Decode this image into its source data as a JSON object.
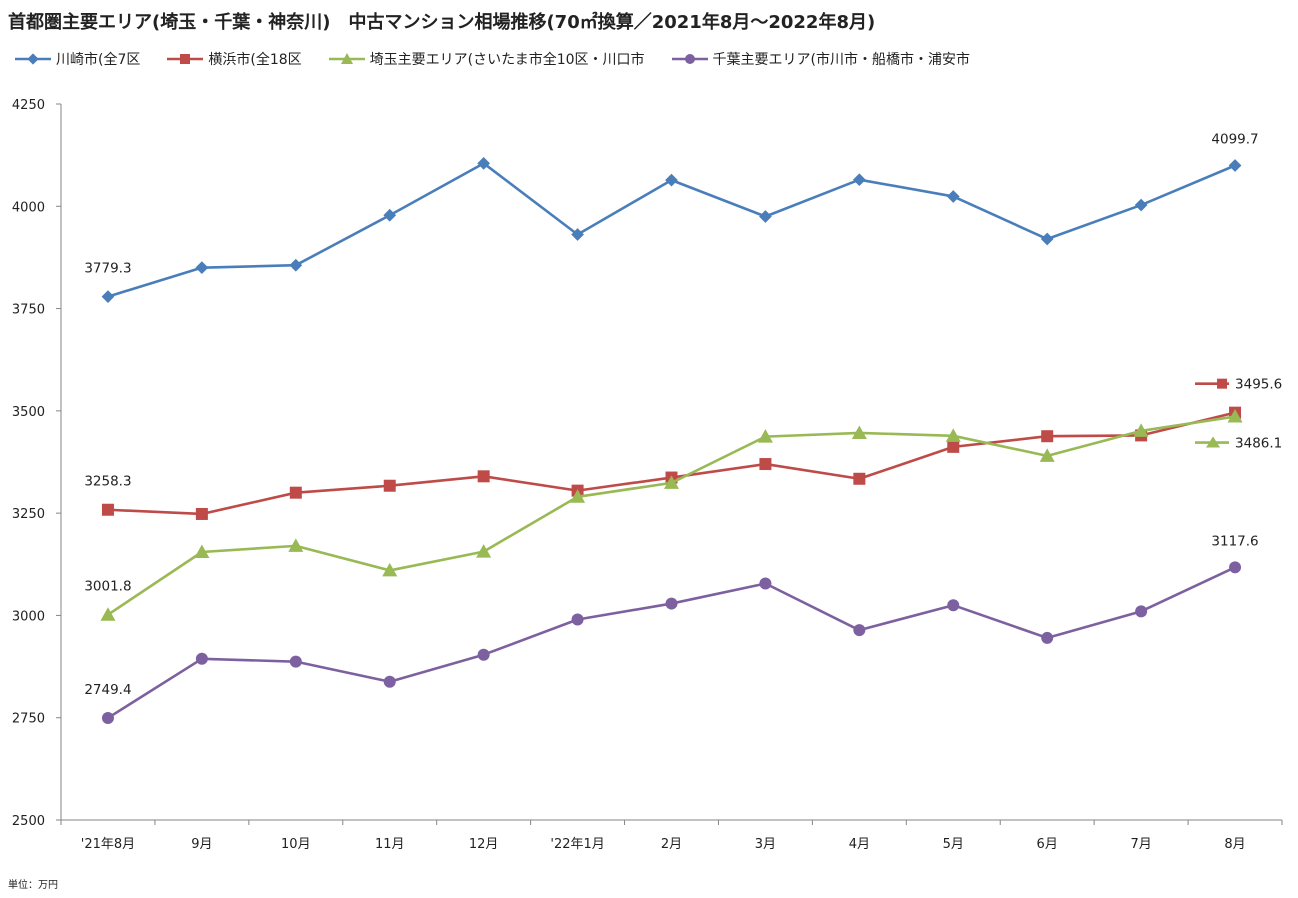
{
  "title": "首都圏主要エリア(埼玉・千葉・神奈川)　中古マンション相場推移(70㎡換算／2021年8月～2022年8月)",
  "unit_note": "単位：万円",
  "chart_data": {
    "type": "line",
    "title": "首都圏主要エリア(埼玉・千葉・神奈川)　中古マンション相場推移(70㎡換算／2021年8月～2022年8月)",
    "xlabel": "",
    "ylabel": "",
    "ylim": [
      2500,
      4250
    ],
    "yticks": [
      2500,
      2750,
      3000,
      3250,
      3500,
      3750,
      4000,
      4250
    ],
    "grid": false,
    "legend_position": "top",
    "categories": [
      "'21年8月",
      "9月",
      "10月",
      "11月",
      "12月",
      "'22年1月",
      "2月",
      "3月",
      "4月",
      "5月",
      "6月",
      "7月",
      "8月"
    ],
    "series": [
      {
        "name": "川崎市(全7区",
        "color": "#4a7ebb",
        "marker": "diamond",
        "values": [
          3779.3,
          3850,
          3856,
          3978,
          4105,
          3931,
          4064,
          3975,
          4065,
          4024,
          3920,
          4003,
          4099.7
        ],
        "labels": [
          {
            "index": 0,
            "text": "3779.3"
          },
          {
            "index": 12,
            "text": "4099.7"
          }
        ]
      },
      {
        "name": "横浜市(全18区",
        "color": "#be4b48",
        "marker": "square",
        "values": [
          3258.3,
          3248,
          3300,
          3317,
          3340,
          3305,
          3337,
          3370,
          3334,
          3412,
          3438,
          3440,
          3495.6
        ],
        "labels": [
          {
            "index": 0,
            "text": "3258.3"
          },
          {
            "index": 12,
            "text": "3495.6"
          }
        ]
      },
      {
        "name": "埼玉主要エリア(さいたま市全10区・川口市",
        "color": "#98b954",
        "marker": "triangle",
        "values": [
          3001.8,
          3155,
          3170,
          3110,
          3156,
          3290,
          3324,
          3437,
          3446,
          3439,
          3390,
          3451,
          3486.1
        ],
        "labels": [
          {
            "index": 0,
            "text": "3001.8"
          },
          {
            "index": 12,
            "text": "3486.1"
          }
        ]
      },
      {
        "name": "千葉主要エリア(市川市・船橋市・浦安市",
        "color": "#7d60a0",
        "marker": "circle",
        "values": [
          2749.4,
          2894,
          2887,
          2838,
          2904,
          2990,
          3029,
          3078,
          2964,
          3025,
          2945,
          3010,
          3117.6
        ],
        "labels": [
          {
            "index": 0,
            "text": "2749.4"
          },
          {
            "index": 12,
            "text": "3117.6"
          }
        ]
      }
    ]
  }
}
